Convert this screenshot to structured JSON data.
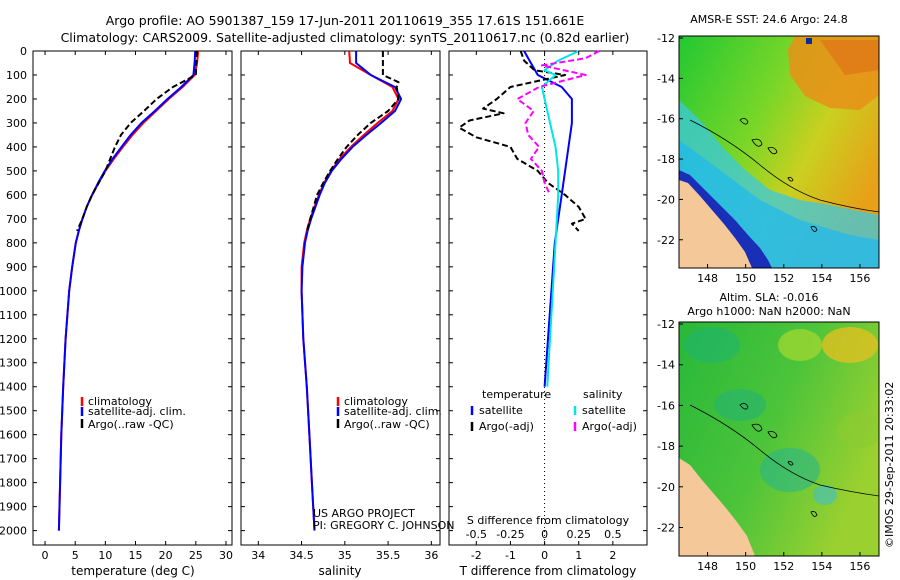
{
  "header": {
    "line1": "Argo profile: AO 5901387_159 17-Jun-2011 20110619_355 17.61S 151.661E",
    "line2": "Climatology: CARS2009. Satellite-adjusted climatology: synTS_20110617.nc (0.82d earlier)"
  },
  "colors": {
    "climatology": "#ff0000",
    "satellite": "#0000ff",
    "argo": "#000000",
    "salinity_satellite": "#00e5e5",
    "salinity_argo": "#ff00ff",
    "land": "#f5c89a"
  },
  "depth_ticks": [
    0,
    100,
    200,
    300,
    400,
    500,
    600,
    700,
    800,
    900,
    1000,
    1100,
    1200,
    1300,
    1400,
    1500,
    1600,
    1700,
    1800,
    1900,
    2000
  ],
  "chart_data": [
    {
      "type": "line",
      "id": "temperature",
      "xlabel": "temperature (deg C)",
      "ylabel": "depth",
      "xlim": [
        -2,
        31
      ],
      "ylim": [
        2060,
        0
      ],
      "xticks": [
        0,
        5,
        10,
        15,
        20,
        25,
        30
      ],
      "xtick_labels": [
        "0",
        "5",
        "10",
        "15",
        "20",
        "25",
        "30"
      ],
      "legend": [
        "climatology",
        "satellite-adj. clim.",
        "Argo(..raw -QC)"
      ],
      "series": [
        {
          "name": "climatology",
          "color": "#ff0000",
          "depth": [
            0,
            50,
            100,
            150,
            200,
            250,
            300,
            350,
            400,
            450,
            500,
            550,
            600,
            650,
            700,
            750,
            800,
            900,
            1000,
            1200,
            1400,
            1600,
            1800,
            2000
          ],
          "values": [
            25.4,
            25.2,
            24.8,
            22.8,
            20.5,
            18.4,
            16.3,
            14.5,
            12.9,
            11.4,
            10.0,
            8.9,
            7.8,
            6.9,
            6.2,
            5.6,
            5.1,
            4.5,
            4.0,
            3.4,
            3.0,
            2.7,
            2.5,
            2.3
          ]
        },
        {
          "name": "satellite-adj. clim.",
          "color": "#0000ff",
          "depth": [
            0,
            50,
            100,
            150,
            200,
            250,
            300,
            350,
            400,
            450,
            500,
            550,
            600,
            650,
            700,
            750,
            800,
            900,
            1000,
            1200,
            1400,
            1600,
            1800,
            2000
          ],
          "values": [
            24.9,
            24.8,
            24.6,
            22.6,
            20.3,
            18.2,
            16.0,
            14.2,
            12.7,
            11.2,
            9.9,
            8.8,
            7.8,
            6.9,
            6.2,
            5.6,
            5.1,
            4.5,
            4.0,
            3.4,
            3.0,
            2.7,
            2.5,
            2.3
          ]
        },
        {
          "name": "Argo(..raw -QC)",
          "color": "#000000",
          "dash": "6,3",
          "depth": [
            0,
            50,
            100,
            150,
            200,
            250,
            300,
            350,
            400,
            450,
            500,
            550,
            600,
            650,
            700,
            750
          ],
          "values": [
            25.2,
            25.1,
            25.0,
            21.2,
            18.5,
            16.4,
            14.2,
            12.6,
            11.6,
            10.8,
            10.0,
            8.9,
            7.8,
            6.9,
            6.2,
            5.3
          ]
        }
      ]
    },
    {
      "type": "line",
      "id": "salinity",
      "xlabel": "salinity",
      "ylabel": "depth",
      "xlim": [
        33.8,
        36.1
      ],
      "ylim": [
        2060,
        0
      ],
      "xticks": [
        34,
        34.5,
        35,
        35.5,
        36
      ],
      "xtick_labels": [
        "34",
        "34.5",
        "35",
        "35.5",
        "36"
      ],
      "legend": [
        "climatology",
        "satellite-adj. clim.",
        "Argo(..raw -QC)"
      ],
      "annotation": [
        "US ARGO PROJECT",
        "PI: GREGORY C. JOHNSON"
      ],
      "series": [
        {
          "name": "climatology",
          "color": "#ff0000",
          "depth": [
            0,
            50,
            100,
            150,
            200,
            250,
            300,
            350,
            400,
            450,
            500,
            550,
            600,
            650,
            700,
            750,
            800,
            900,
            1000,
            1200,
            1400,
            1600,
            1800,
            2000
          ],
          "values": [
            35.05,
            35.06,
            35.3,
            35.55,
            35.62,
            35.55,
            35.38,
            35.22,
            35.07,
            34.94,
            34.84,
            34.76,
            34.7,
            34.65,
            34.6,
            34.56,
            34.53,
            34.5,
            34.5,
            34.52,
            34.56,
            34.59,
            34.62,
            34.65
          ]
        },
        {
          "name": "satellite-adj. clim.",
          "color": "#0000ff",
          "depth": [
            0,
            50,
            100,
            150,
            200,
            250,
            300,
            350,
            400,
            450,
            500,
            550,
            600,
            650,
            700,
            750,
            800,
            900,
            1000,
            1200,
            1400,
            1600,
            1800,
            2000
          ],
          "values": [
            35.13,
            35.13,
            35.3,
            35.58,
            35.65,
            35.58,
            35.42,
            35.25,
            35.09,
            34.96,
            34.85,
            34.77,
            34.71,
            34.66,
            34.61,
            34.57,
            34.54,
            34.51,
            34.5,
            34.52,
            34.56,
            34.59,
            34.62,
            34.65
          ]
        },
        {
          "name": "Argo(..raw -QC)",
          "color": "#000000",
          "dash": "6,3",
          "depth": [
            0,
            50,
            100,
            130,
            150,
            200,
            250,
            300,
            350,
            400,
            450,
            500,
            550,
            600,
            650,
            700,
            750
          ],
          "values": [
            35.44,
            35.44,
            35.44,
            35.62,
            35.6,
            35.62,
            35.5,
            35.3,
            35.15,
            35.02,
            34.92,
            34.83,
            34.75,
            34.68,
            34.64,
            34.6,
            34.56
          ]
        }
      ]
    },
    {
      "type": "line",
      "id": "difference",
      "xlabel": "T difference from climatology",
      "xlabel_top": "S difference from climatology",
      "ylabel": "depth",
      "xlim": [
        -2.8,
        3.0
      ],
      "ylim": [
        2060,
        0
      ],
      "xticks": [
        -2,
        -1,
        0,
        1,
        2
      ],
      "xtick_labels": [
        "-2",
        "-1",
        "0",
        "1",
        "2"
      ],
      "sticks": [
        -0.5,
        -0.25,
        0,
        0.25,
        0.5
      ],
      "stick_labels": [
        "-0.5",
        "-0.25",
        "0",
        "0.25",
        "0.5"
      ],
      "legend_headers": [
        "temperature",
        "salinity"
      ],
      "legend": [
        "satellite",
        "Argo(-adj)",
        "satellite",
        "Argo(-adj)"
      ],
      "series": [
        {
          "name": "T satellite",
          "color": "#0000ff",
          "depth": [
            0,
            50,
            100,
            150,
            200,
            300,
            400,
            500,
            600,
            700,
            800,
            1000,
            1200,
            1400
          ],
          "values": [
            -0.6,
            -0.4,
            -0.2,
            0.5,
            0.8,
            0.8,
            0.7,
            0.6,
            0.5,
            0.4,
            0.3,
            0.2,
            0.1,
            0.0
          ]
        },
        {
          "name": "T Argo(-adj)",
          "color": "#000000",
          "dash": "6,3",
          "depth": [
            0,
            40,
            80,
            100,
            150,
            200,
            240,
            260,
            290,
            320,
            360,
            400,
            450,
            500,
            550,
            600,
            650,
            700,
            720,
            750
          ],
          "values": [
            -0.7,
            -0.6,
            -0.3,
            0.6,
            -1.0,
            -1.4,
            -1.8,
            -1.2,
            -2.2,
            -2.5,
            -2.0,
            -1.0,
            -0.8,
            -0.2,
            0.1,
            0.6,
            1.0,
            1.2,
            0.8,
            1.0
          ]
        },
        {
          "name": "S satellite",
          "color": "#00e5e5",
          "depth": [
            0,
            40,
            80,
            100,
            150,
            200,
            300,
            400,
            500,
            600,
            700,
            800,
            1000,
            1200,
            1400
          ],
          "values": [
            0.25,
            0.1,
            0.0,
            0.08,
            -0.02,
            0.0,
            0.04,
            0.08,
            0.1,
            0.1,
            0.09,
            0.08,
            0.06,
            0.04,
            0.02
          ]
        },
        {
          "name": "S Argo(-adj)",
          "color": "#ff00ff",
          "dash": "6,3",
          "depth": [
            0,
            30,
            60,
            100,
            150,
            200,
            250,
            300,
            350,
            400,
            450,
            500,
            550,
            600
          ],
          "values": [
            0.4,
            0.3,
            -0.02,
            0.3,
            -0.04,
            -0.2,
            -0.08,
            -0.14,
            -0.12,
            -0.04,
            -0.1,
            -0.02,
            0.0,
            0.04
          ]
        }
      ]
    }
  ],
  "maps": [
    {
      "id": "sst-map",
      "title1": "AMSR-E SST: 24.6 Argo: 24.8",
      "xticks": [
        148,
        150,
        152,
        154,
        156
      ],
      "xtick_labels": [
        "148",
        "150",
        "152",
        "154",
        "156"
      ],
      "yticks": [
        -12,
        -14,
        -16,
        -18,
        -20,
        -22
      ],
      "ytick_labels": [
        "-12",
        "-14",
        "-16",
        "-18",
        "-20",
        "-22"
      ],
      "xlim": [
        146.5,
        157.0
      ],
      "ylim": [
        -11.9,
        -23.4
      ]
    },
    {
      "id": "sla-map",
      "title1": "Altim. SLA: -0.016",
      "title2": "Argo h1000: NaN h2000: NaN",
      "xticks": [
        148,
        150,
        152,
        154,
        156
      ],
      "xtick_labels": [
        "148",
        "150",
        "152",
        "154",
        "156"
      ],
      "yticks": [
        -12,
        -14,
        -16,
        -18,
        -20,
        -22
      ],
      "ytick_labels": [
        "-12",
        "-14",
        "-16",
        "-18",
        "-20",
        "-22"
      ],
      "xlim": [
        146.5,
        157.0
      ],
      "ylim": [
        -11.9,
        -23.4
      ]
    }
  ],
  "credit": "©IMOS 29-Sep-2011 20:33:02"
}
